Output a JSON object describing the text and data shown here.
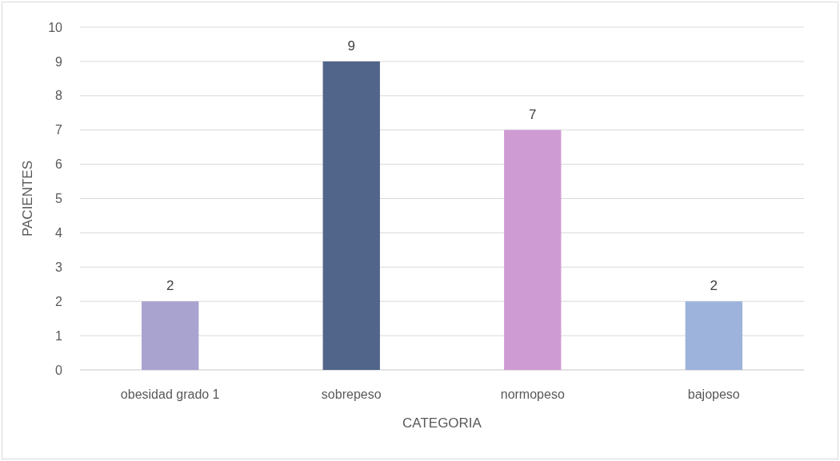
{
  "chart_data": {
    "type": "bar",
    "xlabel": "CATEGORIA",
    "ylabel": "PACIENTES",
    "categories": [
      "obesidad grado 1",
      "sobrepeso",
      "normopeso",
      "bajopeso"
    ],
    "values": [
      2,
      9,
      7,
      2
    ],
    "colors": [
      "#a9a3cf",
      "#51658a",
      "#cf9bd3",
      "#9db3dc"
    ],
    "ylim": [
      0,
      10
    ],
    "yticks": [
      0,
      1,
      2,
      3,
      4,
      5,
      6,
      7,
      8,
      9,
      10
    ],
    "grid": "y",
    "data_labels": true
  }
}
